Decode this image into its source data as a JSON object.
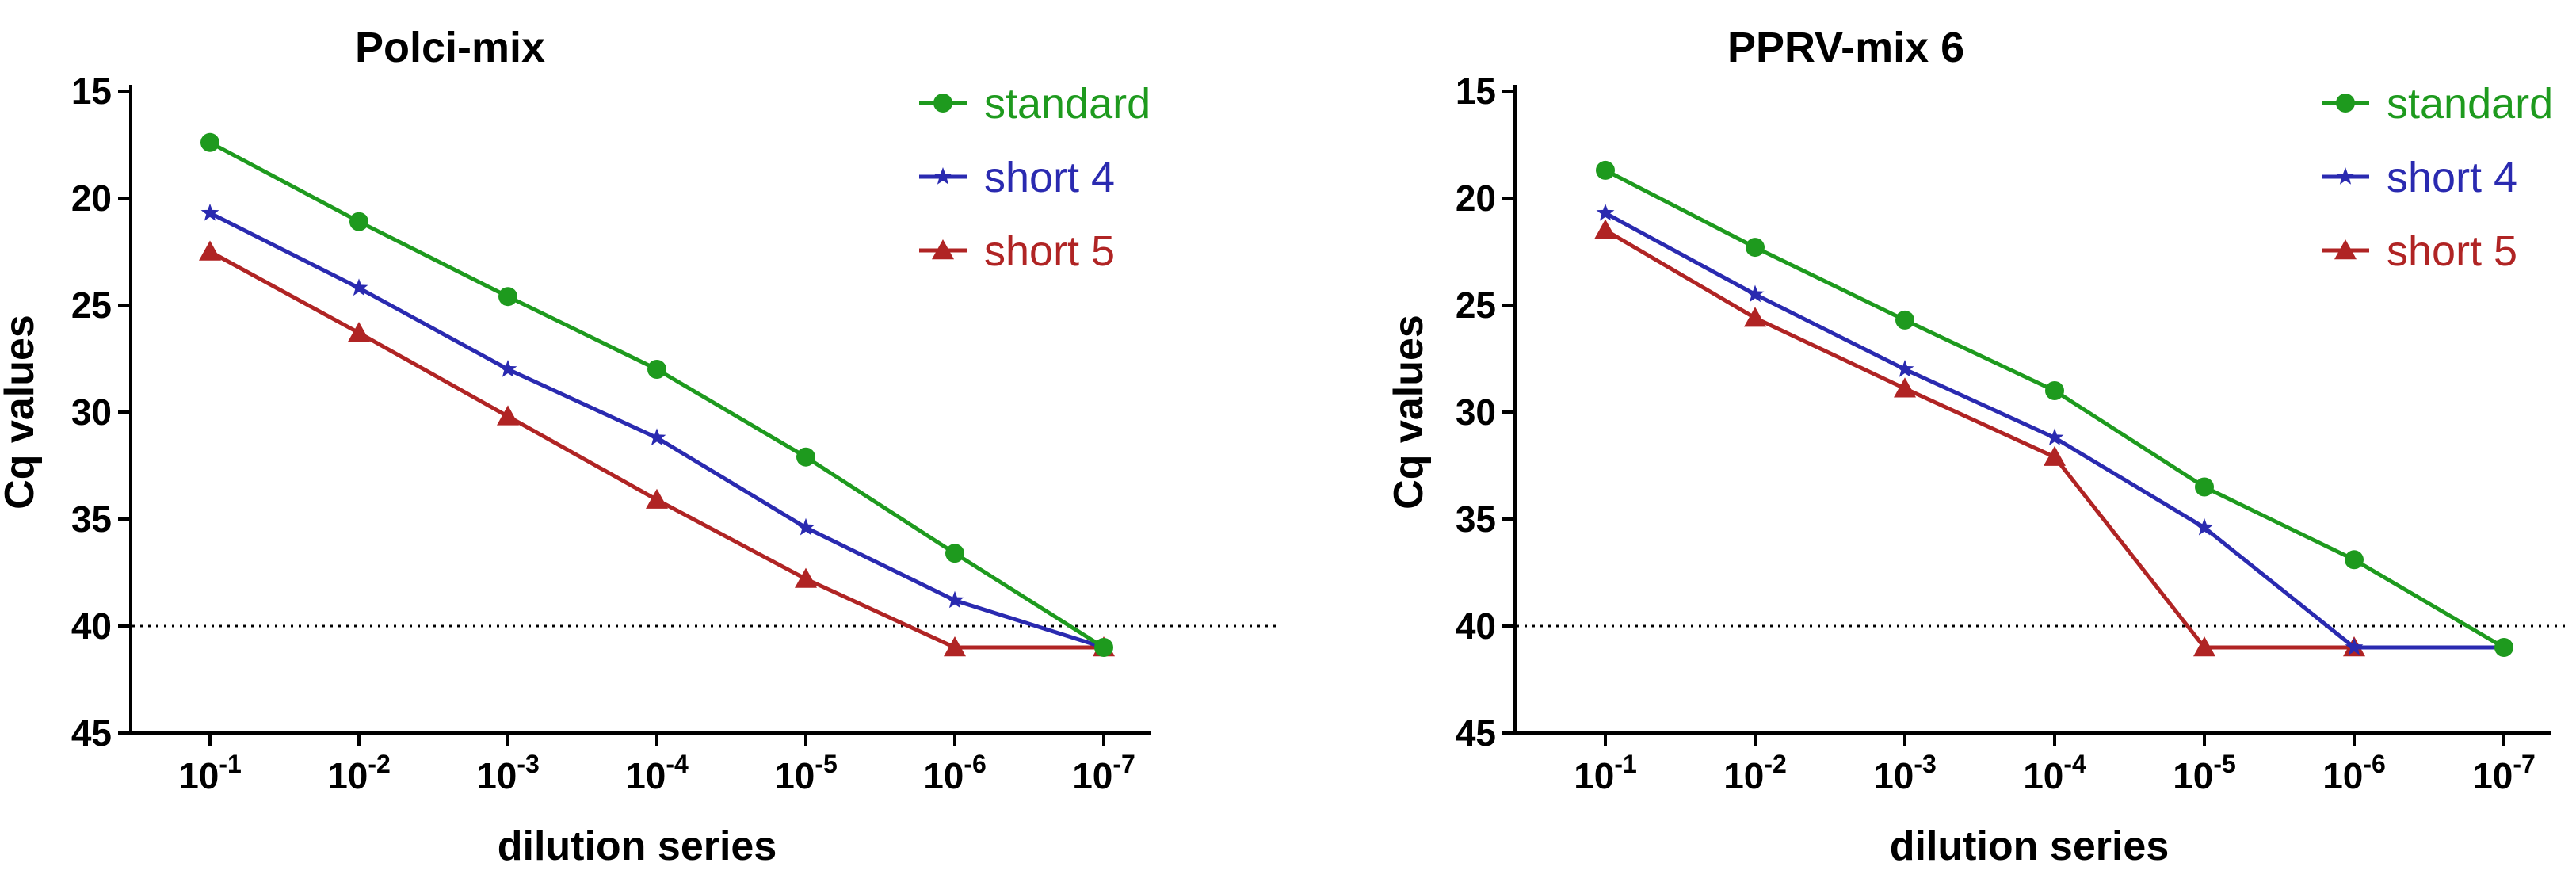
{
  "chart_data": [
    {
      "type": "line",
      "title": "Polci-mix",
      "xlabel": "dilution series",
      "ylabel": "Cq values",
      "categories": [
        "10-1",
        "10-2",
        "10-3",
        "10-4",
        "10-5",
        "10-6",
        "10-7"
      ],
      "x_tick_labels": [
        {
          "base": "10",
          "exp": "-1"
        },
        {
          "base": "10",
          "exp": "-2"
        },
        {
          "base": "10",
          "exp": "-3"
        },
        {
          "base": "10",
          "exp": "-4"
        },
        {
          "base": "10",
          "exp": "-5"
        },
        {
          "base": "10",
          "exp": "-6"
        },
        {
          "base": "10",
          "exp": "-7"
        }
      ],
      "ylim": [
        45,
        15
      ],
      "y_ticks": [
        15,
        20,
        25,
        30,
        35,
        40,
        45
      ],
      "y_inverted": true,
      "threshold": 40,
      "legend_position": "top-right",
      "series": [
        {
          "name": "standard",
          "color": "#1e9a1e",
          "marker": "circle",
          "values": [
            17.4,
            21.1,
            24.6,
            28.0,
            32.1,
            36.6,
            41.0
          ]
        },
        {
          "name": "short 4",
          "color": "#2a2ab0",
          "marker": "star",
          "values": [
            20.7,
            24.2,
            28.0,
            31.2,
            35.4,
            38.8,
            41.0
          ]
        },
        {
          "name": "short 5",
          "color": "#b02424",
          "marker": "triangle",
          "values": [
            22.5,
            26.3,
            30.2,
            34.1,
            37.8,
            41.0,
            41.0
          ]
        }
      ]
    },
    {
      "type": "line",
      "title": "PPRV-mix 6",
      "xlabel": "dilution series",
      "ylabel": "Cq values",
      "categories": [
        "10-1",
        "10-2",
        "10-3",
        "10-4",
        "10-5",
        "10-6",
        "10-7"
      ],
      "x_tick_labels": [
        {
          "base": "10",
          "exp": "-1"
        },
        {
          "base": "10",
          "exp": "-2"
        },
        {
          "base": "10",
          "exp": "-3"
        },
        {
          "base": "10",
          "exp": "-4"
        },
        {
          "base": "10",
          "exp": "-5"
        },
        {
          "base": "10",
          "exp": "-6"
        },
        {
          "base": "10",
          "exp": "-7"
        }
      ],
      "ylim": [
        45,
        15
      ],
      "y_ticks": [
        15,
        20,
        25,
        30,
        35,
        40,
        45
      ],
      "y_inverted": true,
      "threshold": 40,
      "legend_position": "top-right",
      "series": [
        {
          "name": "standard",
          "color": "#1e9a1e",
          "marker": "circle",
          "values": [
            18.7,
            22.3,
            25.7,
            29.0,
            33.5,
            36.9,
            41.0
          ]
        },
        {
          "name": "short 4",
          "color": "#2a2ab0",
          "marker": "star",
          "values": [
            20.7,
            24.5,
            28.0,
            31.2,
            35.4,
            41.0,
            41.0
          ]
        },
        {
          "name": "short 5",
          "color": "#b02424",
          "marker": "triangle",
          "values": [
            21.5,
            25.6,
            28.9,
            32.1,
            41.0,
            41.0,
            null
          ]
        }
      ]
    }
  ]
}
